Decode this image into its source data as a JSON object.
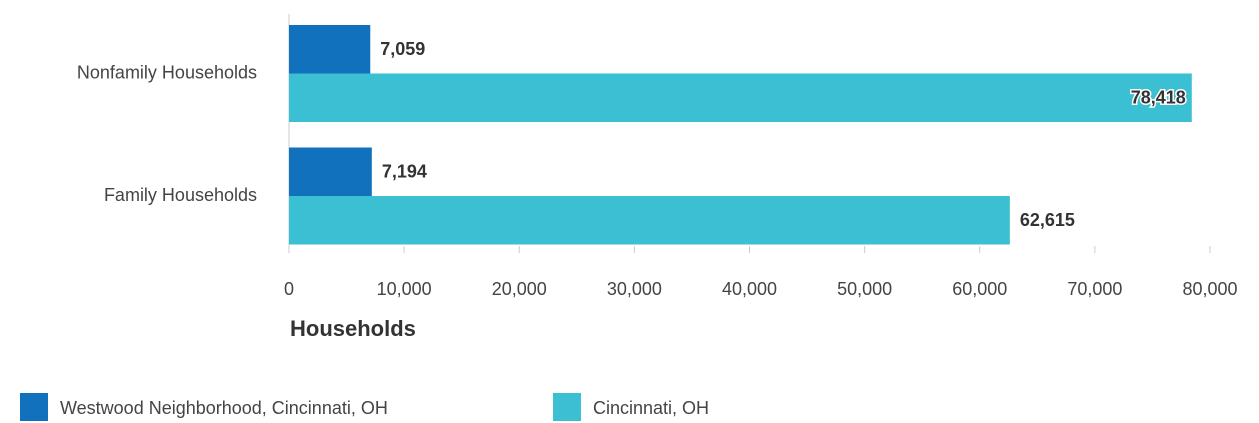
{
  "chart_data": {
    "type": "hbar",
    "categories": [
      "Nonfamily Households",
      "Family Households"
    ],
    "series": [
      {
        "name": "Westwood Neighborhood, Cincinnati, OH",
        "color": "#1271bd",
        "values": [
          7059,
          7194
        ],
        "value_labels": [
          "7,059",
          "7,194"
        ]
      },
      {
        "name": "Cincinnati, OH",
        "color": "#3bbfd2",
        "values": [
          78418,
          62615
        ],
        "value_labels": [
          "78,418",
          "62,615"
        ]
      }
    ],
    "xlim": [
      0,
      80000
    ],
    "xticks": [
      0,
      {
        "value": 10000,
        "label": "10,000"
      },
      {
        "value": 20000,
        "label": "20,000"
      },
      {
        "value": 30000,
        "label": "30,000"
      },
      {
        "value": 40000,
        "label": "40,000"
      },
      {
        "value": 50000,
        "label": "50,000"
      },
      {
        "value": 60000,
        "label": "60,000"
      },
      {
        "value": 70000,
        "label": "70,000"
      },
      {
        "value": 80000,
        "label": "80,000"
      }
    ],
    "x_label": "Households"
  }
}
